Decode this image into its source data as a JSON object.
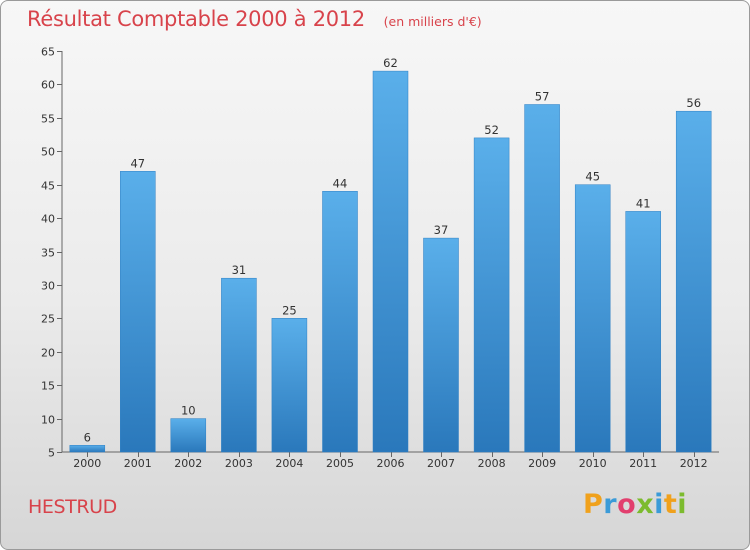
{
  "header": {
    "title": "Résultat Comptable 2000 à 2012",
    "subtitle": "(en milliers d'€)"
  },
  "footer": {
    "location": "HESTRUD",
    "brand": [
      "P",
      "r",
      "o",
      "x",
      "i",
      "t",
      "i"
    ]
  },
  "chart_data": {
    "type": "bar",
    "title": "Résultat Comptable 2000 à 2012",
    "subtitle": "(en milliers d'€)",
    "xlabel": "",
    "ylabel": "",
    "categories": [
      "2000",
      "2001",
      "2002",
      "2003",
      "2004",
      "2005",
      "2006",
      "2007",
      "2008",
      "2009",
      "2010",
      "2011",
      "2012"
    ],
    "values": [
      6,
      47,
      10,
      31,
      25,
      44,
      62,
      37,
      52,
      57,
      45,
      41,
      56
    ],
    "ylim": [
      5,
      65
    ],
    "yticks": [
      5,
      10,
      15,
      20,
      25,
      30,
      35,
      40,
      45,
      50,
      55,
      60,
      65
    ],
    "grid": false,
    "bar_color": "#3d93d8"
  }
}
